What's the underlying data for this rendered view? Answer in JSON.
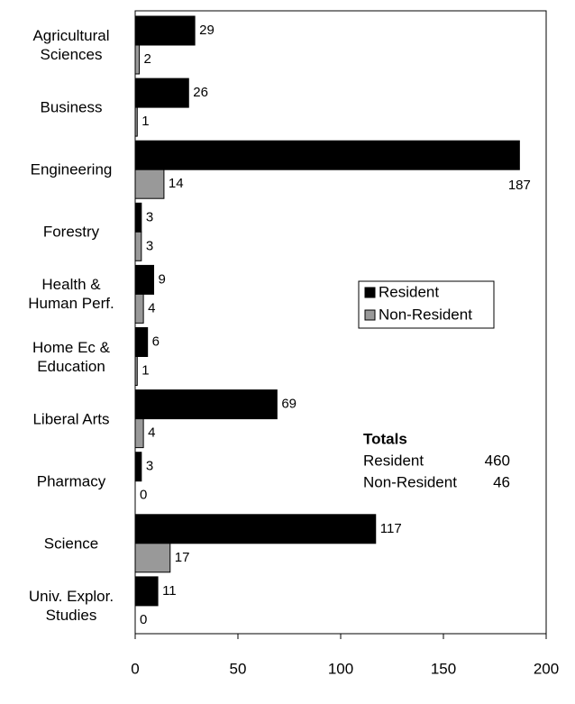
{
  "chart_data": {
    "type": "hbar",
    "categories": [
      "Agricultural Sciences",
      "Business",
      "Engineering",
      "Forestry",
      "Health & Human Perf.",
      "Home Ec & Education",
      "Liberal Arts",
      "Pharmacy",
      "Science",
      "Univ. Explor. Studies"
    ],
    "series": [
      {
        "name": "Resident",
        "color": "#000000",
        "values": [
          29,
          26,
          187,
          3,
          9,
          6,
          69,
          3,
          117,
          11
        ]
      },
      {
        "name": "Non-Resident",
        "color": "#999999",
        "values": [
          2,
          1,
          14,
          3,
          4,
          1,
          4,
          0,
          17,
          0
        ]
      }
    ],
    "xlim": [
      0,
      200
    ],
    "xticks": [
      0,
      50,
      100,
      150,
      200
    ],
    "grid": false,
    "totals": {
      "title": "Totals",
      "rows": [
        {
          "label": "Resident",
          "value": 460
        },
        {
          "label": "Non-Resident",
          "value": 46
        }
      ]
    }
  }
}
